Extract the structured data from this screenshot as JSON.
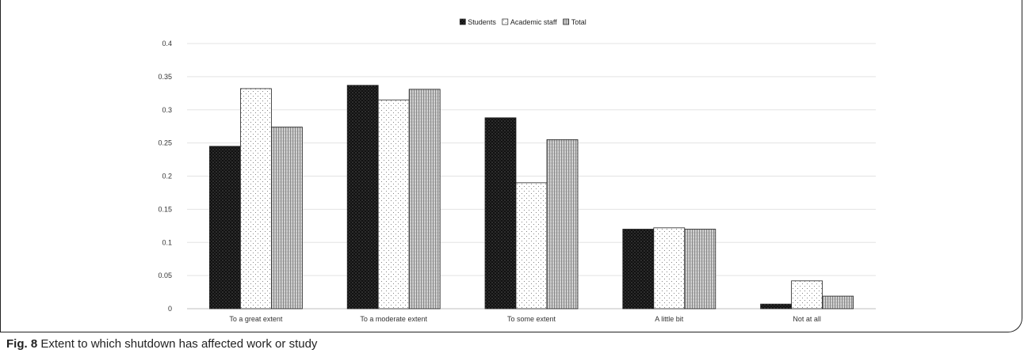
{
  "chart_data": {
    "type": "bar",
    "title": "",
    "xlabel": "",
    "ylabel": "",
    "ylim": [
      0,
      0.4
    ],
    "yticks": [
      "0",
      "0.05",
      "0.1",
      "0.15",
      "0.2",
      "0.25",
      "0.3",
      "0.35",
      "0.4"
    ],
    "grid": true,
    "legend_position": "top-center",
    "categories": [
      "To a great extent",
      "To a moderate extent",
      "To some extent",
      "A little bit",
      "Not at all"
    ],
    "series": [
      {
        "name": "Students",
        "values": [
          0.245,
          0.337,
          0.288,
          0.12,
          0.007
        ],
        "color": "#1a1a1a",
        "pattern": "dark"
      },
      {
        "name": "Academic staff",
        "values": [
          0.332,
          0.315,
          0.19,
          0.122,
          0.042
        ],
        "color": "#ffffff",
        "pattern": "dots"
      },
      {
        "name": "Total",
        "values": [
          0.274,
          0.331,
          0.255,
          0.12,
          0.019
        ],
        "color": "#b5b5b5",
        "pattern": "stripes"
      }
    ]
  },
  "caption": {
    "label": "Fig. 8",
    "text": " Extent to which shutdown has affected work or study"
  }
}
